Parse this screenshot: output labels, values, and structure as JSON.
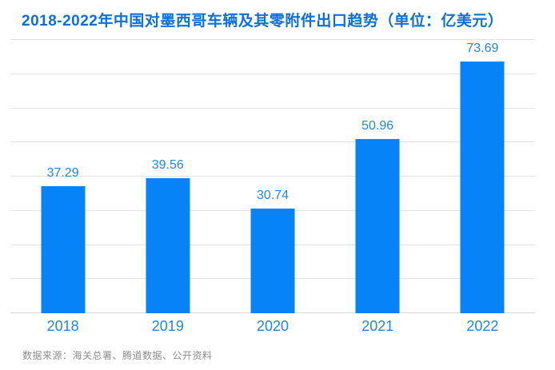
{
  "title": "2018-2022年中国对墨西哥车辆及其零附件出口趋势（单位：亿美元）",
  "source_note": "数据来源：海关总署、腾道数据、公开资料",
  "colors": {
    "title_blue": "#0d70d9",
    "bar_blue": "#0583f7",
    "label_blue": "#2187e7",
    "grid_gray": "#e3e3e3",
    "axis_gray": "#d7d7d7",
    "source_gray": "#8c8c8c",
    "background": "#ffffff"
  },
  "chart_data": {
    "type": "bar",
    "categories": [
      "2018",
      "2019",
      "2020",
      "2021",
      "2022"
    ],
    "values": [
      37.29,
      39.56,
      30.74,
      50.96,
      73.69
    ],
    "value_labels": [
      "37.29",
      "39.56",
      "30.74",
      "50.96",
      "73.69"
    ],
    "title": "2018-2022年中国对墨西哥车辆及其零附件出口趋势（单位：亿美元）",
    "xlabel": "",
    "ylabel": "",
    "ylim": [
      0,
      80
    ],
    "gridline_interval": 10,
    "grid": true,
    "y_axis_tick_labels_visible": false,
    "data_labels": true,
    "legend": "none"
  }
}
